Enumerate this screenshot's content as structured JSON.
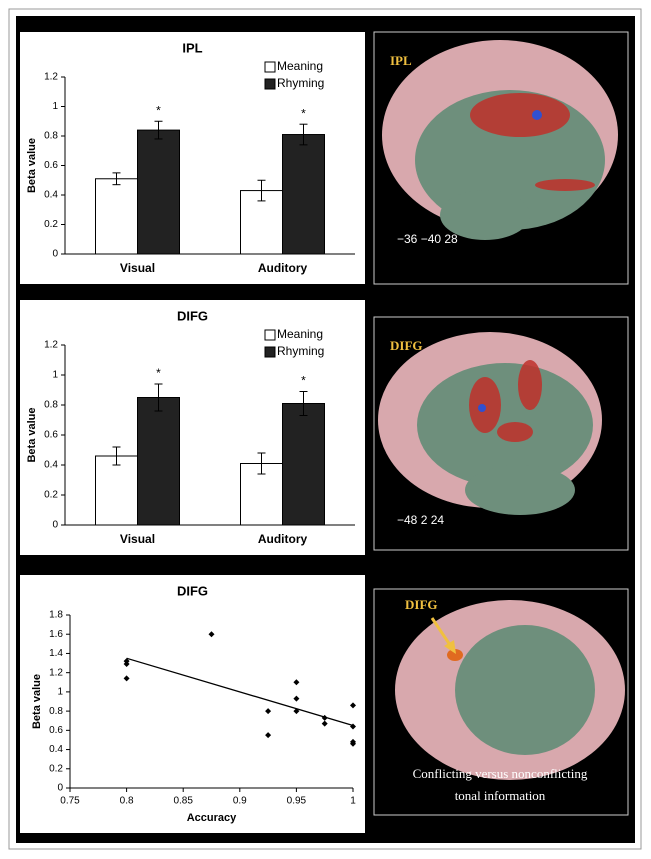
{
  "chart_data": [
    {
      "type": "bar",
      "title": "IPL",
      "ylabel": "Beta value",
      "categories": [
        "Visual",
        "Auditory"
      ],
      "series": [
        {
          "name": "Meaning",
          "color": "#ffffff",
          "values": [
            0.51,
            0.43
          ],
          "errors": [
            0.04,
            0.07
          ]
        },
        {
          "name": "Rhyming",
          "color": "#222222",
          "values": [
            0.84,
            0.81
          ],
          "errors": [
            0.06,
            0.07
          ]
        }
      ],
      "annotations": [
        "*",
        "*"
      ],
      "ylim": [
        0,
        1.2
      ],
      "yticks": [
        0,
        0.2,
        0.4,
        0.6,
        0.8,
        1,
        1.2
      ],
      "legend": "top-right"
    },
    {
      "type": "bar",
      "title": "DIFG",
      "ylabel": "Beta value",
      "categories": [
        "Visual",
        "Auditory"
      ],
      "series": [
        {
          "name": "Meaning",
          "color": "#ffffff",
          "values": [
            0.46,
            0.41
          ],
          "errors": [
            0.06,
            0.07
          ]
        },
        {
          "name": "Rhyming",
          "color": "#222222",
          "values": [
            0.85,
            0.81
          ],
          "errors": [
            0.09,
            0.08
          ]
        }
      ],
      "annotations": [
        "*",
        "*"
      ],
      "ylim": [
        0,
        1.2
      ],
      "yticks": [
        0,
        0.2,
        0.4,
        0.6,
        0.8,
        1,
        1.2
      ],
      "legend": "top-right"
    },
    {
      "type": "scatter",
      "title": "DIFG",
      "xlabel": "Accuracy",
      "ylabel": "Beta value",
      "color": "#000000",
      "x": [
        0.8,
        0.8,
        0.8,
        0.875,
        0.925,
        0.925,
        0.95,
        0.95,
        0.95,
        0.975,
        0.975,
        1,
        1,
        1,
        1
      ],
      "values": [
        1.32,
        1.29,
        1.14,
        1.6,
        0.8,
        0.55,
        1.1,
        0.93,
        0.8,
        0.73,
        0.67,
        0.86,
        0.64,
        0.48,
        0.46
      ],
      "trendline": {
        "x": [
          0.8,
          1
        ],
        "y": [
          1.35,
          0.65
        ]
      },
      "xlim": [
        0.75,
        1
      ],
      "xticks": [
        0.75,
        0.8,
        0.85,
        0.9,
        0.95,
        1
      ],
      "ylim": [
        0,
        1.8
      ],
      "yticks": [
        0,
        0.2,
        0.4,
        0.6,
        0.8,
        1,
        1.2,
        1.4,
        1.6,
        1.8
      ]
    }
  ],
  "images": [
    {
      "label": "IPL",
      "coords": "−36 −40 28"
    },
    {
      "label": "DIFG",
      "coords": "−48 2 24"
    },
    {
      "label": "DIFG",
      "caption": [
        "Conflicting versus nonconflicting",
        "tonal information"
      ]
    }
  ]
}
